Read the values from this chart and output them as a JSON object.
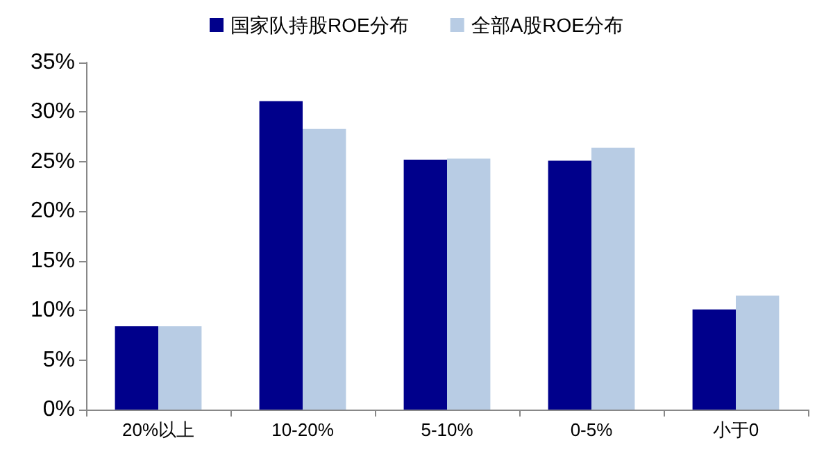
{
  "chart_data": {
    "type": "bar",
    "categories": [
      "20%以上",
      "10-20%",
      "5-10%",
      "0-5%",
      "小于0"
    ],
    "series": [
      {
        "name": "国家队持股ROE分布",
        "color": "#00008b",
        "values": [
          8.4,
          31.1,
          25.2,
          25.1,
          10.1
        ]
      },
      {
        "name": "全部A股ROE分布",
        "color": "#b8cce4",
        "values": [
          8.4,
          28.3,
          25.3,
          26.4,
          11.5
        ]
      }
    ],
    "ylim": [
      0,
      35
    ],
    "yticks": [
      {
        "value": 0,
        "label": "0%"
      },
      {
        "value": 5,
        "label": "5%"
      },
      {
        "value": 10,
        "label": "10%"
      },
      {
        "value": 15,
        "label": "15%"
      },
      {
        "value": 20,
        "label": "20%"
      },
      {
        "value": 25,
        "label": "25%"
      },
      {
        "value": 30,
        "label": "30%"
      },
      {
        "value": 35,
        "label": "35%"
      }
    ],
    "grid": false,
    "legend": "top"
  }
}
